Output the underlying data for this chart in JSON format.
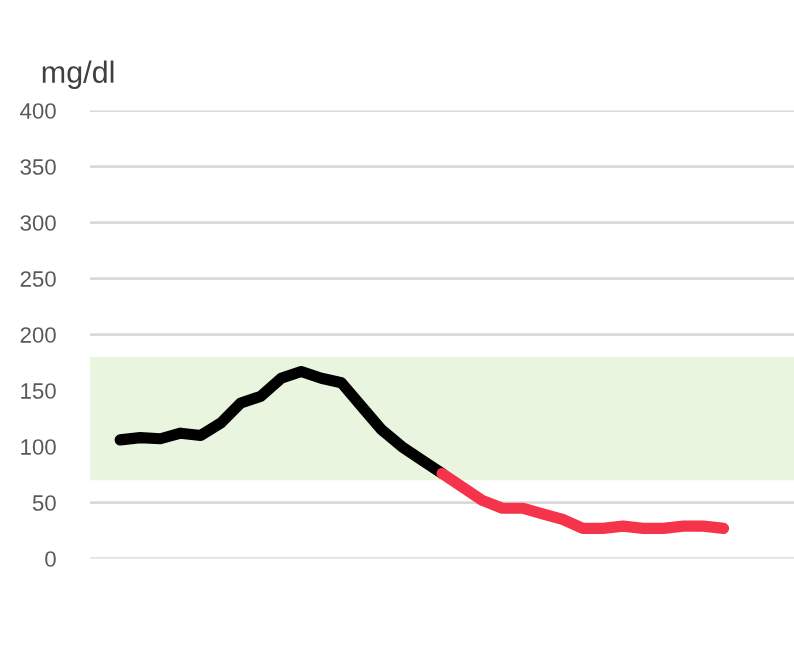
{
  "chart_data": {
    "type": "line",
    "ylabel": "mg/dl",
    "categories": [
      null,
      null,
      null,
      null,
      null,
      null,
      null,
      null,
      null,
      null,
      null,
      null,
      null,
      null,
      null,
      null,
      null,
      null,
      null,
      null,
      null,
      null,
      null,
      null,
      null,
      null,
      null,
      null,
      null,
      null,
      null,
      null,
      null,
      null,
      null
    ],
    "series": [
      {
        "color": "#000000",
        "values": [
          null,
          106,
          108,
          107,
          112,
          110,
          121,
          139,
          145,
          161,
          167,
          161,
          157,
          136,
          115,
          100,
          88,
          76,
          null,
          null,
          null,
          null,
          null,
          null,
          null,
          null,
          null,
          null,
          null,
          null,
          null,
          null,
          null,
          null,
          null
        ]
      },
      {
        "color": "#f5334a",
        "values": [
          null,
          null,
          null,
          null,
          null,
          null,
          null,
          null,
          null,
          null,
          null,
          null,
          null,
          null,
          null,
          null,
          null,
          76,
          64,
          52,
          45,
          45,
          40,
          35,
          27,
          27,
          29,
          27,
          27,
          29,
          29,
          27,
          null,
          null,
          null
        ]
      }
    ],
    "ylim": [
      0,
      400
    ],
    "yticks": [
      0,
      50,
      100,
      150,
      200,
      250,
      300,
      350,
      400
    ],
    "grid": "y",
    "bands": [
      {
        "axis": "y",
        "from": 70,
        "to": 180,
        "color": "#e9f5de"
      }
    ]
  }
}
